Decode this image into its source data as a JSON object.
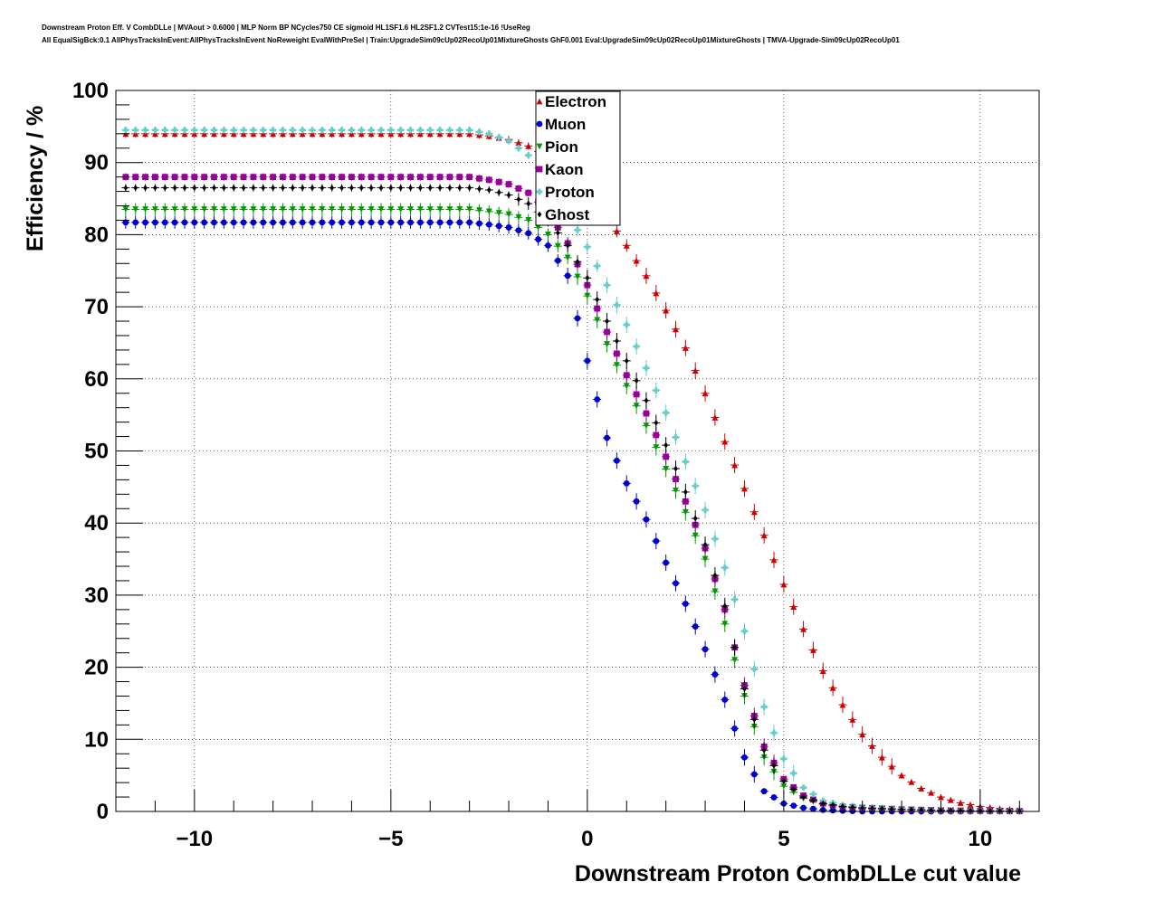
{
  "title_line1": "Downstream Proton Eff. V CombDLLe | MVAout > 0.6000 | MLP Norm BP NCycles750 CE sigmoid HL1SF1.6 HL2SF1.2 CVTest15:1e-16 !UseReg",
  "title_line2": "All EqualSigBck:0.1 AllPhysTracksInEvent:AllPhysTracksInEvent NoReweight EvalWithPreSel | Train:UpgradeSim09cUp02RecoUp01MixtureGhosts GhF0.001 Eval:UpgradeSim09cUp02RecoUp01MixtureGhosts | TMVA-Upgrade-Sim09cUp02RecoUp01",
  "chart_data": {
    "type": "scatter",
    "xlabel": "Downstream Proton CombDLLe cut value",
    "ylabel": "Efficiency / %",
    "xlim": [
      -12,
      11.5
    ],
    "ylim": [
      0,
      100
    ],
    "xticks": [
      -10,
      -5,
      0,
      5,
      10
    ],
    "xtick_labels": [
      "−10",
      "−5",
      "0",
      "5",
      "10"
    ],
    "yticks": [
      0,
      10,
      20,
      30,
      40,
      50,
      60,
      70,
      80,
      90,
      100
    ],
    "grid": true,
    "legend_position": "top-center",
    "x_sample": "0.25-unit steps from -11.75 to 11.0",
    "series": [
      {
        "name": "Electron",
        "color": "#cc0000",
        "marker": "triangle-up",
        "points": [
          [
            -11.75,
            94
          ],
          [
            -3,
            94
          ],
          [
            -2.5,
            93.7
          ],
          [
            -2,
            93.2
          ],
          [
            -1.5,
            92.3
          ],
          [
            -1,
            90.8
          ],
          [
            -0.5,
            88.8
          ],
          [
            0,
            86
          ],
          [
            0.5,
            82.5
          ],
          [
            1,
            78.5
          ],
          [
            1.5,
            74.3
          ],
          [
            2,
            69.5
          ],
          [
            2.5,
            64.3
          ],
          [
            3,
            58
          ],
          [
            3.5,
            51.3
          ],
          [
            4,
            44.8
          ],
          [
            4.5,
            38.3
          ],
          [
            5,
            31.5
          ],
          [
            5.5,
            25.3
          ],
          [
            6,
            19.5
          ],
          [
            6.5,
            14.8
          ],
          [
            7,
            10.7
          ],
          [
            7.5,
            7.5
          ],
          [
            8,
            5
          ],
          [
            8.5,
            3.2
          ],
          [
            9,
            2
          ],
          [
            9.5,
            1.2
          ],
          [
            10,
            0.7
          ],
          [
            10.5,
            0.4
          ],
          [
            11,
            0.25
          ]
        ]
      },
      {
        "name": "Muon",
        "color": "#0000cc",
        "marker": "circle",
        "points": [
          [
            -11.75,
            81.7
          ],
          [
            -3,
            81.7
          ],
          [
            -2.5,
            81.4
          ],
          [
            -2,
            81
          ],
          [
            -1.5,
            80.2
          ],
          [
            -1,
            78.5
          ],
          [
            -0.5,
            74.3
          ],
          [
            0,
            62.5
          ],
          [
            0.5,
            51.8
          ],
          [
            1,
            45.5
          ],
          [
            1.5,
            40.5
          ],
          [
            2,
            34.5
          ],
          [
            2.5,
            28.8
          ],
          [
            3,
            22.5
          ],
          [
            3.5,
            15.5
          ],
          [
            4,
            7.5
          ],
          [
            4.5,
            2.8
          ],
          [
            5,
            1.1
          ],
          [
            5.5,
            0.5
          ],
          [
            6,
            0.2
          ],
          [
            6.5,
            0.1
          ],
          [
            7,
            0
          ],
          [
            11,
            0
          ]
        ]
      },
      {
        "name": "Pion",
        "color": "#009900",
        "marker": "triangle-down",
        "points": [
          [
            -11.75,
            83.5
          ],
          [
            -3,
            83.5
          ],
          [
            -2.5,
            83.2
          ],
          [
            -2,
            82.8
          ],
          [
            -1.5,
            82
          ],
          [
            -1,
            80
          ],
          [
            -0.5,
            76.8
          ],
          [
            0,
            71.5
          ],
          [
            0.5,
            64.8
          ],
          [
            1,
            59
          ],
          [
            1.5,
            53.5
          ],
          [
            2,
            47.5
          ],
          [
            2.5,
            41.5
          ],
          [
            3,
            35
          ],
          [
            3.5,
            26
          ],
          [
            4,
            16
          ],
          [
            4.5,
            7.5
          ],
          [
            5,
            3.5
          ],
          [
            5.5,
            1.8
          ],
          [
            6,
            1
          ],
          [
            6.5,
            0.6
          ],
          [
            7,
            0.4
          ],
          [
            8,
            0.25
          ],
          [
            9,
            0.15
          ],
          [
            11,
            0.05
          ]
        ]
      },
      {
        "name": "Kaon",
        "color": "#990099",
        "marker": "square",
        "points": [
          [
            -11.75,
            88
          ],
          [
            -3,
            88
          ],
          [
            -2.5,
            87.6
          ],
          [
            -2,
            87
          ],
          [
            -1.5,
            85.8
          ],
          [
            -1,
            83.2
          ],
          [
            -0.5,
            78.8
          ],
          [
            0,
            73
          ],
          [
            0.5,
            66.5
          ],
          [
            1,
            60.5
          ],
          [
            1.5,
            55.2
          ],
          [
            2,
            49.2
          ],
          [
            2.5,
            43
          ],
          [
            3,
            36.5
          ],
          [
            3.5,
            28
          ],
          [
            4,
            17.5
          ],
          [
            4.5,
            9
          ],
          [
            5,
            4.5
          ],
          [
            5.5,
            2.2
          ],
          [
            6,
            1.1
          ],
          [
            6.5,
            0.7
          ],
          [
            7,
            0.5
          ],
          [
            8,
            0.3
          ],
          [
            9,
            0.15
          ],
          [
            11,
            0.05
          ]
        ]
      },
      {
        "name": "Proton",
        "color": "#66cccc",
        "marker": "cross",
        "points": [
          [
            -11.75,
            94.5
          ],
          [
            -3,
            94.5
          ],
          [
            -2.5,
            94
          ],
          [
            -2,
            93
          ],
          [
            -1.5,
            91
          ],
          [
            -1,
            87.5
          ],
          [
            -0.5,
            83
          ],
          [
            0,
            78.3
          ],
          [
            0.5,
            73
          ],
          [
            1,
            67.5
          ],
          [
            1.5,
            61.5
          ],
          [
            2,
            55.3
          ],
          [
            2.5,
            48.5
          ],
          [
            3,
            41.8
          ],
          [
            3.5,
            33.8
          ],
          [
            4,
            25
          ],
          [
            4.5,
            14.5
          ],
          [
            5,
            7.3
          ],
          [
            5.5,
            3.3
          ],
          [
            6,
            1.5
          ],
          [
            6.5,
            0.9
          ],
          [
            7,
            0.6
          ],
          [
            8,
            0.35
          ],
          [
            9,
            0.15
          ],
          [
            11,
            0.05
          ]
        ]
      },
      {
        "name": "Ghost",
        "color": "#000000",
        "marker": "diamond",
        "points": [
          [
            -11.75,
            86.5
          ],
          [
            -3,
            86.5
          ],
          [
            -2.5,
            86.2
          ],
          [
            -2,
            85.5
          ],
          [
            -1.5,
            84.3
          ],
          [
            -1,
            82
          ],
          [
            -0.5,
            78.5
          ],
          [
            0,
            74
          ],
          [
            0.5,
            68
          ],
          [
            1,
            62.5
          ],
          [
            1.5,
            57
          ],
          [
            2,
            50.8
          ],
          [
            2.5,
            44.3
          ],
          [
            3,
            37
          ],
          [
            3.5,
            28.5
          ],
          [
            4,
            17
          ],
          [
            4.5,
            8.5
          ],
          [
            5,
            4.2
          ],
          [
            5.5,
            2
          ],
          [
            6,
            1.1
          ],
          [
            6.5,
            0.7
          ],
          [
            7,
            0.5
          ],
          [
            8,
            0.3
          ],
          [
            9,
            0.15
          ],
          [
            11,
            0.05
          ]
        ]
      }
    ]
  }
}
